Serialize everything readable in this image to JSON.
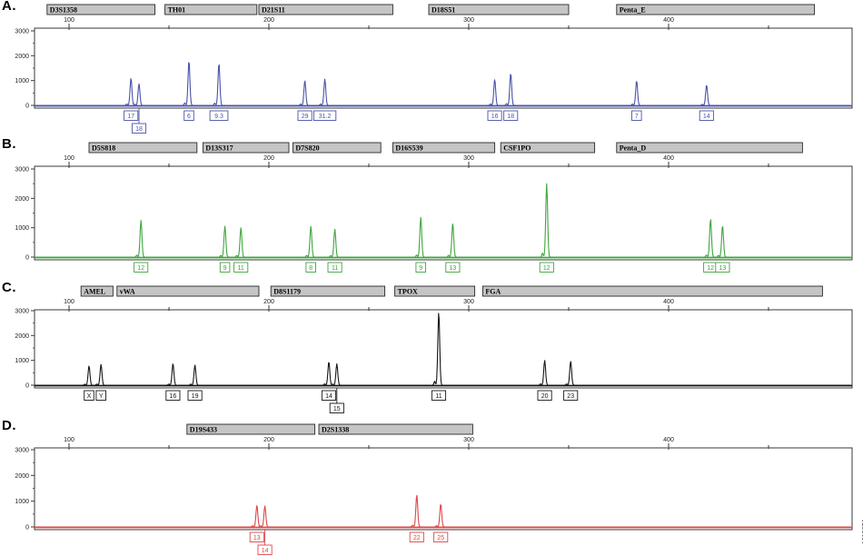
{
  "figure_id": "10130TA",
  "colors": {
    "blue": "#4953a8",
    "green": "#3fa53f",
    "black": "#161616",
    "red": "#dd4646",
    "marker_bar_fill": "#c5c5c5",
    "marker_bar_border": "#2a2a2a",
    "axis": "#3a3a3a",
    "tick_text": "#222222"
  },
  "chart_data": {
    "type": "line",
    "description": "Four-dye STR electropherogram panels (RFU vs size in bases)",
    "x_axis": {
      "major_ticks": [
        100,
        200,
        300,
        400
      ],
      "minor_ticks": [
        150,
        250,
        350,
        450
      ],
      "range": [
        83,
        473
      ]
    },
    "y_axis": {
      "major_ticks": [
        0,
        1000,
        2000,
        3000
      ],
      "minor_step": 500,
      "max": 3000
    },
    "panels": [
      {
        "label": "A.",
        "color_key": "blue",
        "markers": [
          {
            "name": "D3S1358",
            "range_bp": [
              89,
              143
            ]
          },
          {
            "name": "TH01",
            "range_bp": [
              148,
              194
            ]
          },
          {
            "name": "D21S11",
            "range_bp": [
              195,
              262
            ]
          },
          {
            "name": "D18S51",
            "range_bp": [
              280,
              350
            ]
          },
          {
            "name": "Penta_E",
            "range_bp": [
              374,
              473
            ]
          }
        ],
        "peaks": [
          {
            "bp": 131,
            "rfu": 1100,
            "allele": "17",
            "row": 1
          },
          {
            "bp": 135,
            "rfu": 870,
            "allele": "18",
            "row": 2
          },
          {
            "bp": 160,
            "rfu": 1800,
            "allele": "6",
            "row": 1
          },
          {
            "bp": 175,
            "rfu": 1700,
            "allele": "9.3",
            "row": 1
          },
          {
            "bp": 218,
            "rfu": 1000,
            "allele": "29",
            "row": 1
          },
          {
            "bp": 228,
            "rfu": 1060,
            "allele": "31.2",
            "row": 1
          },
          {
            "bp": 313,
            "rfu": 1050,
            "allele": "16",
            "row": 1
          },
          {
            "bp": 321,
            "rfu": 1300,
            "allele": "18",
            "row": 1
          },
          {
            "bp": 384,
            "rfu": 1000,
            "allele": "7",
            "row": 1
          },
          {
            "bp": 419,
            "rfu": 830,
            "allele": "14",
            "row": 1
          }
        ]
      },
      {
        "label": "B.",
        "color_key": "green",
        "markers": [
          {
            "name": "D5S818",
            "range_bp": [
              110,
              164
            ]
          },
          {
            "name": "D13S317",
            "range_bp": [
              167,
              210
            ]
          },
          {
            "name": "D7S820",
            "range_bp": [
              212,
              256
            ]
          },
          {
            "name": "D16S539",
            "range_bp": [
              262,
              313
            ]
          },
          {
            "name": "CSF1PO",
            "range_bp": [
              316,
              363
            ]
          },
          {
            "name": "Penta_D",
            "range_bp": [
              374,
              467
            ]
          }
        ],
        "peaks": [
          {
            "bp": 136,
            "rfu": 1250,
            "allele": "12",
            "row": 1
          },
          {
            "bp": 178,
            "rfu": 1050,
            "allele": "9",
            "row": 1
          },
          {
            "bp": 186,
            "rfu": 1000,
            "allele": "11",
            "row": 1
          },
          {
            "bp": 221,
            "rfu": 1050,
            "allele": "8",
            "row": 1
          },
          {
            "bp": 233,
            "rfu": 950,
            "allele": "11",
            "row": 1
          },
          {
            "bp": 276,
            "rfu": 1350,
            "allele": "9",
            "row": 1
          },
          {
            "bp": 292,
            "rfu": 1150,
            "allele": "13",
            "row": 1
          },
          {
            "bp": 339,
            "rfu": 2500,
            "allele": "12",
            "row": 1
          },
          {
            "bp": 421,
            "rfu": 1300,
            "allele": "12",
            "row": 1
          },
          {
            "bp": 427,
            "rfu": 1080,
            "allele": "13",
            "row": 1
          }
        ]
      },
      {
        "label": "C.",
        "color_key": "black",
        "markers": [
          {
            "name": "AMEL",
            "range_bp": [
              106,
              122
            ]
          },
          {
            "name": "vWA",
            "range_bp": [
              124,
              195
            ]
          },
          {
            "name": "D8S1179",
            "range_bp": [
              201,
              258
            ]
          },
          {
            "name": "TPOX",
            "range_bp": [
              263,
              303
            ]
          },
          {
            "name": "FGA",
            "range_bp": [
              307,
              477
            ]
          }
        ],
        "peaks": [
          {
            "bp": 110,
            "rfu": 780,
            "allele": "X",
            "row": 1
          },
          {
            "bp": 116,
            "rfu": 840,
            "allele": "Y",
            "row": 1
          },
          {
            "bp": 152,
            "rfu": 870,
            "allele": "16",
            "row": 1
          },
          {
            "bp": 163,
            "rfu": 810,
            "allele": "19",
            "row": 1
          },
          {
            "bp": 230,
            "rfu": 950,
            "allele": "14",
            "row": 1
          },
          {
            "bp": 234,
            "rfu": 860,
            "allele": "15",
            "row": 2
          },
          {
            "bp": 285,
            "rfu": 2950,
            "allele": "11",
            "row": 1
          },
          {
            "bp": 338,
            "rfu": 1000,
            "allele": "20",
            "row": 1
          },
          {
            "bp": 351,
            "rfu": 970,
            "allele": "23",
            "row": 1
          }
        ]
      },
      {
        "label": "D.",
        "color_key": "red",
        "markers": [
          {
            "name": "D19S433",
            "range_bp": [
              159,
              223
            ]
          },
          {
            "name": "D2S1338",
            "range_bp": [
              225,
              302
            ]
          }
        ],
        "peaks": [
          {
            "bp": 194,
            "rfu": 840,
            "allele": "13",
            "row": 1
          },
          {
            "bp": 198,
            "rfu": 820,
            "allele": "14",
            "row": 2
          },
          {
            "bp": 274,
            "rfu": 1250,
            "allele": "22",
            "row": 1
          },
          {
            "bp": 286,
            "rfu": 900,
            "allele": "25",
            "row": 1
          }
        ]
      }
    ]
  }
}
